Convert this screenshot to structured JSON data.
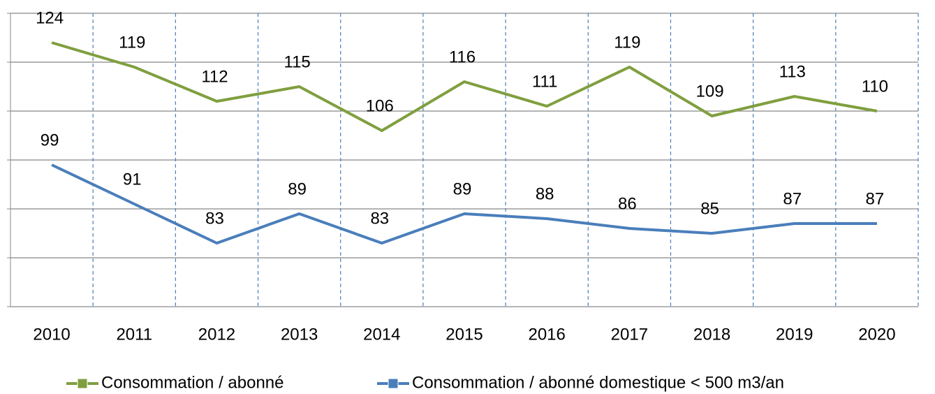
{
  "chart_data": {
    "type": "line",
    "categories": [
      "2010",
      "2011",
      "2012",
      "2013",
      "2014",
      "2015",
      "2016",
      "2017",
      "2018",
      "2019",
      "2020"
    ],
    "series": [
      {
        "name": "Consommation / abonné",
        "color": "#7f9f3f",
        "values": [
          124,
          119,
          112,
          115,
          106,
          116,
          111,
          119,
          109,
          113,
          110
        ]
      },
      {
        "name": "Consommation / abonné domestique < 500 m3/an",
        "color": "#4a7ebb",
        "values": [
          99,
          91,
          83,
          89,
          83,
          89,
          88,
          86,
          85,
          87,
          87
        ]
      }
    ],
    "ylim": [
      70,
      130
    ],
    "yticks": [
      70,
      80,
      90,
      100,
      110,
      120,
      130
    ],
    "grid": true,
    "legend": "bottom"
  }
}
